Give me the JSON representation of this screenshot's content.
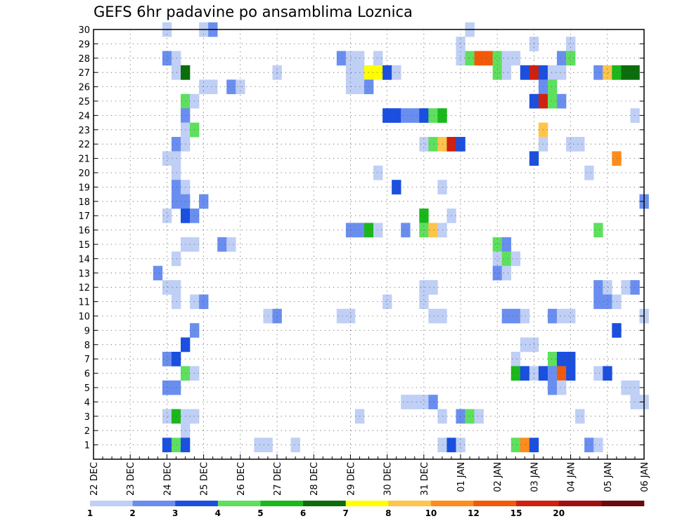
{
  "chart_data": {
    "type": "heatmap",
    "title": "GEFS 6hr padavine po ansamblima Loznica",
    "xlabel": "",
    "ylabel": "",
    "x_tick_labels": [
      "22 DEC",
      "23 DEC",
      "24 DEC",
      "25 DEC",
      "26 DEC",
      "27 DEC",
      "28 DEC",
      "29 DEC",
      "30 DEC",
      "31 DEC",
      "01 JAN",
      "02 JAN",
      "03 JAN",
      "04 JAN",
      "05 JAN",
      "06 JAN"
    ],
    "y_tick_labels": [
      "1",
      "2",
      "3",
      "4",
      "5",
      "6",
      "7",
      "8",
      "9",
      "10",
      "11",
      "12",
      "13",
      "14",
      "15",
      "16",
      "17",
      "18",
      "19",
      "20",
      "21",
      "22",
      "23",
      "24",
      "25",
      "26",
      "27",
      "28",
      "29",
      "30"
    ],
    "x_range_steps": [
      0,
      60
    ],
    "steps_per_day": 4,
    "y_range": [
      0,
      30
    ],
    "grid": true,
    "legend_position": "bottom",
    "color_levels": [
      {
        "label": "1",
        "color": "#bfcff5"
      },
      {
        "label": "2",
        "color": "#6a8ef0"
      },
      {
        "label": "3",
        "color": "#1a4fe0"
      },
      {
        "label": "4",
        "color": "#5ee05e"
      },
      {
        "label": "5",
        "color": "#1ab81a"
      },
      {
        "label": "6",
        "color": "#0b6e0b"
      },
      {
        "label": "7",
        "color": "#ffff00"
      },
      {
        "label": "8",
        "color": "#ffc44a"
      },
      {
        "label": "10",
        "color": "#ff8c1a"
      },
      {
        "label": "12",
        "color": "#f25a0a"
      },
      {
        "label": "15",
        "color": "#d0200e"
      },
      {
        "label": "20",
        "color": "#a01010"
      },
      {
        "label": "",
        "color": "#6b0a0a"
      }
    ],
    "cells_note": "each cell: [time_step_index, member_row, level_index]",
    "cells": [
      [
        8,
        30,
        0
      ],
      [
        12,
        30,
        0
      ],
      [
        13,
        30,
        1
      ],
      [
        41,
        30,
        0
      ],
      [
        40,
        29,
        0
      ],
      [
        48,
        29,
        0
      ],
      [
        52,
        29,
        0
      ],
      [
        8,
        28,
        1
      ],
      [
        9,
        28,
        0
      ],
      [
        27,
        28,
        1
      ],
      [
        28,
        28,
        0
      ],
      [
        29,
        28,
        0
      ],
      [
        31,
        28,
        0
      ],
      [
        40,
        28,
        0
      ],
      [
        41,
        28,
        3
      ],
      [
        42,
        28,
        9
      ],
      [
        43,
        28,
        9
      ],
      [
        44,
        28,
        3
      ],
      [
        45,
        28,
        0
      ],
      [
        46,
        28,
        0
      ],
      [
        51,
        28,
        1
      ],
      [
        52,
        28,
        3
      ],
      [
        9,
        27,
        0
      ],
      [
        10,
        27,
        5
      ],
      [
        20,
        27,
        0
      ],
      [
        28,
        27,
        0
      ],
      [
        29,
        27,
        0
      ],
      [
        30,
        27,
        6
      ],
      [
        31,
        27,
        6
      ],
      [
        32,
        27,
        2
      ],
      [
        33,
        27,
        0
      ],
      [
        44,
        27,
        3
      ],
      [
        45,
        27,
        0
      ],
      [
        47,
        27,
        2
      ],
      [
        48,
        27,
        10
      ],
      [
        49,
        27,
        2
      ],
      [
        50,
        27,
        0
      ],
      [
        51,
        27,
        0
      ],
      [
        55,
        27,
        1
      ],
      [
        56,
        27,
        7
      ],
      [
        57,
        27,
        4
      ],
      [
        58,
        27,
        5
      ],
      [
        59,
        27,
        5
      ],
      [
        12,
        26,
        0
      ],
      [
        13,
        26,
        0
      ],
      [
        15,
        26,
        1
      ],
      [
        16,
        26,
        0
      ],
      [
        28,
        26,
        0
      ],
      [
        29,
        26,
        0
      ],
      [
        30,
        26,
        1
      ],
      [
        49,
        26,
        1
      ],
      [
        50,
        26,
        3
      ],
      [
        10,
        25,
        3
      ],
      [
        11,
        25,
        0
      ],
      [
        48,
        25,
        2
      ],
      [
        49,
        25,
        10
      ],
      [
        50,
        25,
        3
      ],
      [
        51,
        25,
        1
      ],
      [
        10,
        24,
        1
      ],
      [
        32,
        24,
        2
      ],
      [
        33,
        24,
        2
      ],
      [
        34,
        24,
        1
      ],
      [
        35,
        24,
        1
      ],
      [
        36,
        24,
        2
      ],
      [
        37,
        24,
        3
      ],
      [
        38,
        24,
        4
      ],
      [
        59,
        24,
        0
      ],
      [
        10,
        23,
        0
      ],
      [
        11,
        23,
        3
      ],
      [
        49,
        23,
        7
      ],
      [
        9,
        22,
        1
      ],
      [
        10,
        22,
        0
      ],
      [
        36,
        22,
        0
      ],
      [
        37,
        22,
        3
      ],
      [
        38,
        22,
        7
      ],
      [
        39,
        22,
        10
      ],
      [
        40,
        22,
        2
      ],
      [
        49,
        22,
        0
      ],
      [
        52,
        22,
        0
      ],
      [
        53,
        22,
        0
      ],
      [
        8,
        21,
        0
      ],
      [
        9,
        21,
        0
      ],
      [
        48,
        21,
        2
      ],
      [
        57,
        21,
        8
      ],
      [
        9,
        20,
        0
      ],
      [
        31,
        20,
        0
      ],
      [
        54,
        20,
        0
      ],
      [
        9,
        19,
        1
      ],
      [
        10,
        19,
        0
      ],
      [
        33,
        19,
        2
      ],
      [
        38,
        19,
        0
      ],
      [
        9,
        18,
        1
      ],
      [
        10,
        18,
        1
      ],
      [
        12,
        18,
        1
      ],
      [
        60,
        18,
        1
      ],
      [
        8,
        17,
        0
      ],
      [
        10,
        17,
        2
      ],
      [
        11,
        17,
        1
      ],
      [
        36,
        17,
        4
      ],
      [
        39,
        17,
        0
      ],
      [
        28,
        16,
        1
      ],
      [
        29,
        16,
        1
      ],
      [
        30,
        16,
        4
      ],
      [
        31,
        16,
        0
      ],
      [
        34,
        16,
        1
      ],
      [
        36,
        16,
        3
      ],
      [
        37,
        16,
        7
      ],
      [
        38,
        16,
        0
      ],
      [
        55,
        16,
        3
      ],
      [
        10,
        15,
        0
      ],
      [
        11,
        15,
        0
      ],
      [
        14,
        15,
        1
      ],
      [
        15,
        15,
        0
      ],
      [
        44,
        15,
        3
      ],
      [
        45,
        15,
        1
      ],
      [
        9,
        14,
        0
      ],
      [
        44,
        14,
        0
      ],
      [
        45,
        14,
        3
      ],
      [
        46,
        14,
        0
      ],
      [
        7,
        13,
        1
      ],
      [
        44,
        13,
        1
      ],
      [
        45,
        13,
        0
      ],
      [
        8,
        12,
        0
      ],
      [
        9,
        12,
        0
      ],
      [
        36,
        12,
        0
      ],
      [
        37,
        12,
        0
      ],
      [
        55,
        12,
        1
      ],
      [
        56,
        12,
        0
      ],
      [
        58,
        12,
        0
      ],
      [
        59,
        12,
        1
      ],
      [
        9,
        11,
        0
      ],
      [
        11,
        11,
        0
      ],
      [
        12,
        11,
        1
      ],
      [
        32,
        11,
        0
      ],
      [
        36,
        11,
        0
      ],
      [
        55,
        11,
        1
      ],
      [
        56,
        11,
        1
      ],
      [
        57,
        11,
        0
      ],
      [
        19,
        10,
        0
      ],
      [
        20,
        10,
        1
      ],
      [
        27,
        10,
        0
      ],
      [
        28,
        10,
        0
      ],
      [
        37,
        10,
        0
      ],
      [
        38,
        10,
        0
      ],
      [
        45,
        10,
        1
      ],
      [
        46,
        10,
        1
      ],
      [
        47,
        10,
        0
      ],
      [
        50,
        10,
        1
      ],
      [
        51,
        10,
        0
      ],
      [
        52,
        10,
        0
      ],
      [
        60,
        10,
        0
      ],
      [
        11,
        9,
        1
      ],
      [
        57,
        9,
        2
      ],
      [
        10,
        8,
        2
      ],
      [
        47,
        8,
        0
      ],
      [
        48,
        8,
        0
      ],
      [
        8,
        7,
        1
      ],
      [
        9,
        7,
        2
      ],
      [
        46,
        7,
        0
      ],
      [
        50,
        7,
        3
      ],
      [
        51,
        7,
        2
      ],
      [
        52,
        7,
        2
      ],
      [
        10,
        6,
        3
      ],
      [
        11,
        6,
        0
      ],
      [
        46,
        6,
        4
      ],
      [
        47,
        6,
        2
      ],
      [
        48,
        6,
        0
      ],
      [
        49,
        6,
        2
      ],
      [
        50,
        6,
        1
      ],
      [
        51,
        6,
        9
      ],
      [
        52,
        6,
        2
      ],
      [
        55,
        6,
        0
      ],
      [
        56,
        6,
        2
      ],
      [
        8,
        5,
        1
      ],
      [
        9,
        5,
        1
      ],
      [
        50,
        5,
        1
      ],
      [
        51,
        5,
        0
      ],
      [
        58,
        5,
        0
      ],
      [
        59,
        5,
        0
      ],
      [
        34,
        4,
        0
      ],
      [
        35,
        4,
        0
      ],
      [
        36,
        4,
        0
      ],
      [
        37,
        4,
        1
      ],
      [
        59,
        4,
        0
      ],
      [
        60,
        4,
        0
      ],
      [
        8,
        3,
        0
      ],
      [
        9,
        3,
        4
      ],
      [
        10,
        3,
        0
      ],
      [
        11,
        3,
        0
      ],
      [
        29,
        3,
        0
      ],
      [
        38,
        3,
        0
      ],
      [
        40,
        3,
        1
      ],
      [
        41,
        3,
        3
      ],
      [
        42,
        3,
        0
      ],
      [
        53,
        3,
        0
      ],
      [
        10,
        2,
        0
      ],
      [
        8,
        1,
        2
      ],
      [
        9,
        1,
        3
      ],
      [
        10,
        1,
        2
      ],
      [
        18,
        1,
        0
      ],
      [
        19,
        1,
        0
      ],
      [
        22,
        1,
        0
      ],
      [
        38,
        1,
        0
      ],
      [
        39,
        1,
        2
      ],
      [
        40,
        1,
        0
      ],
      [
        46,
        1,
        3
      ],
      [
        47,
        1,
        8
      ],
      [
        48,
        1,
        2
      ],
      [
        54,
        1,
        1
      ],
      [
        55,
        1,
        0
      ]
    ]
  }
}
